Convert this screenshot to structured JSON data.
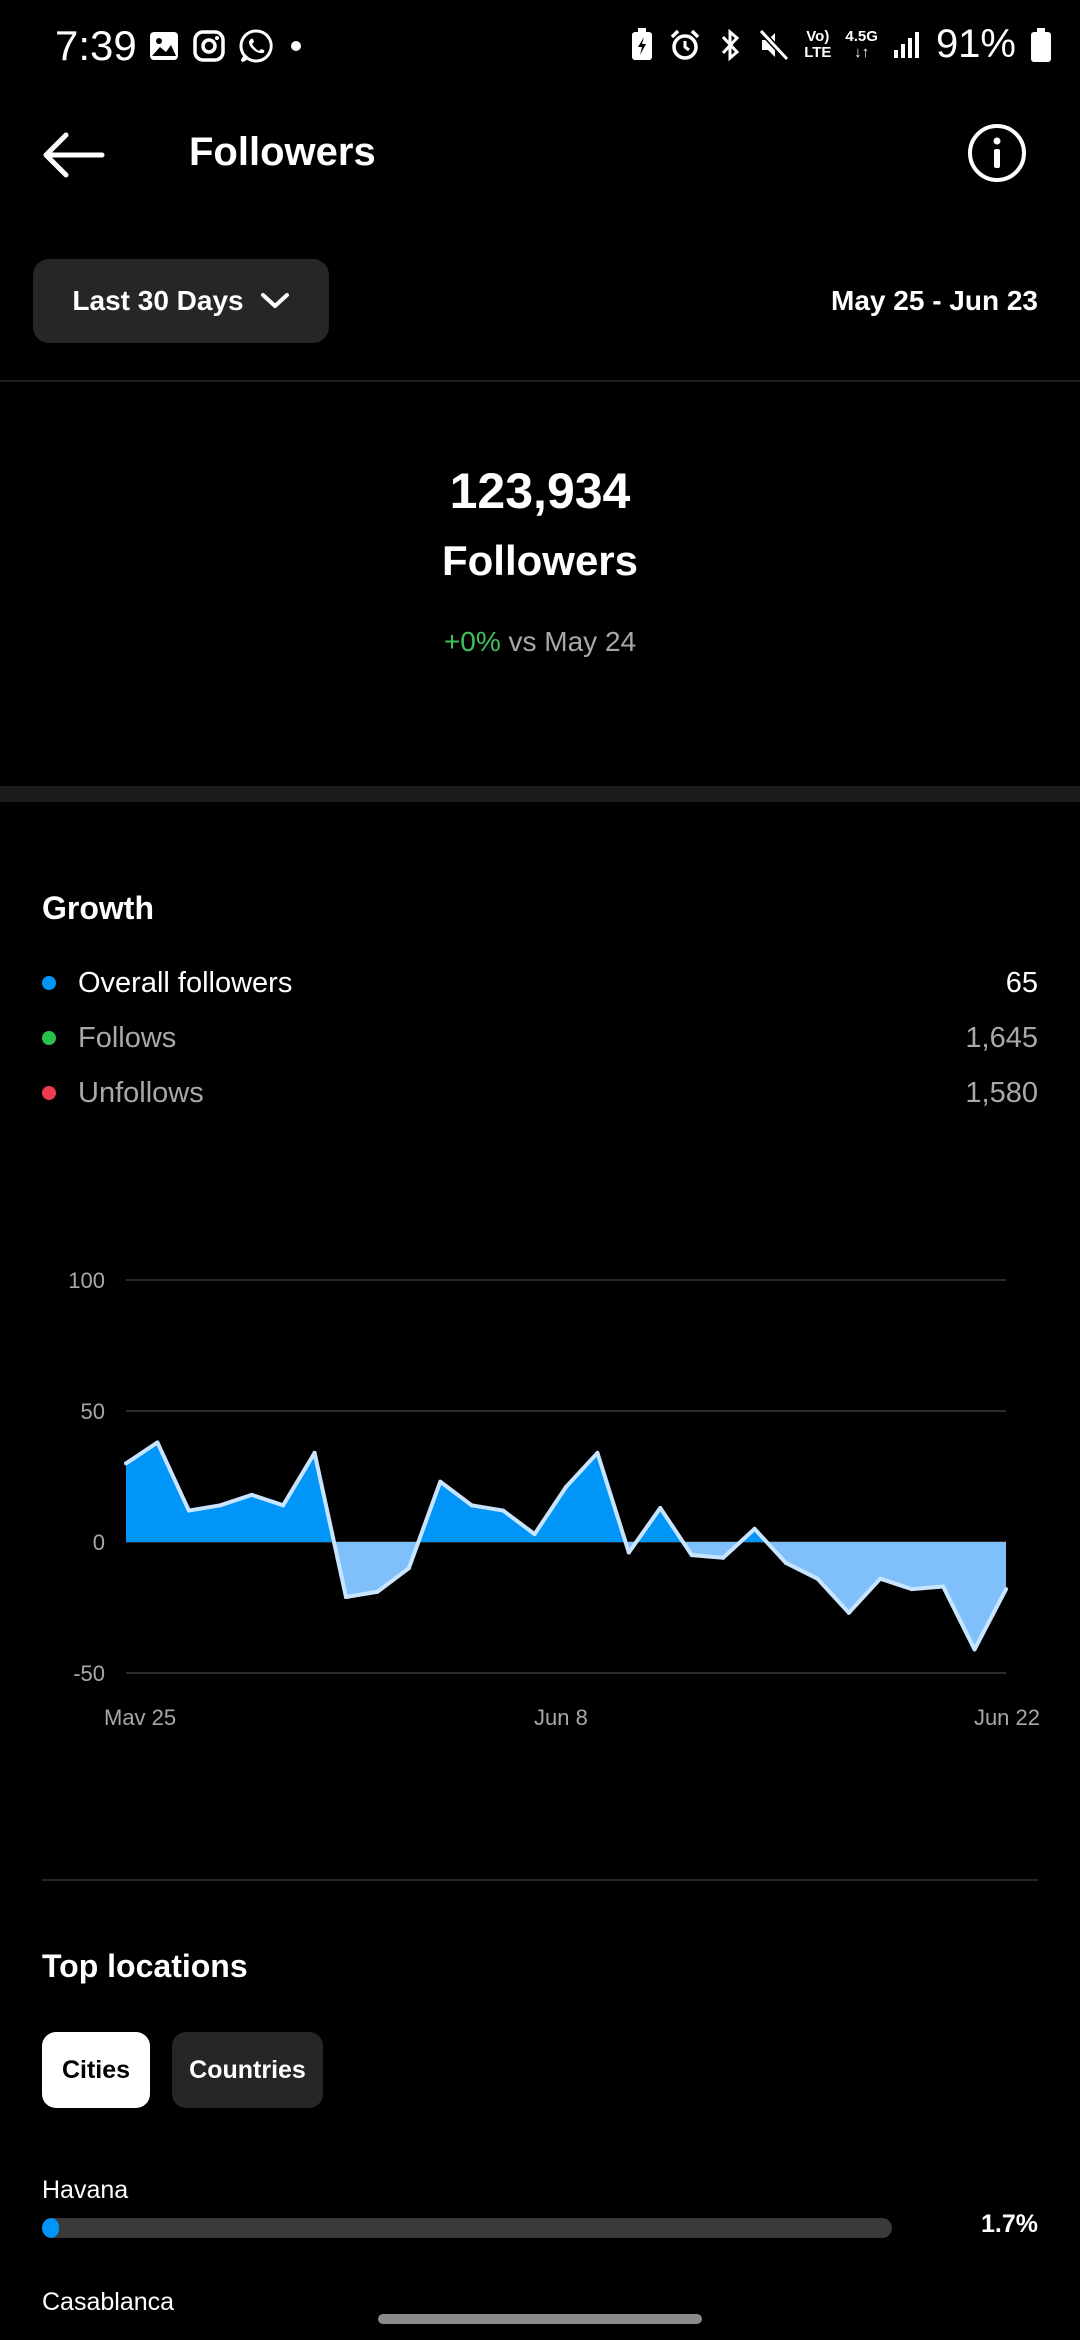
{
  "status_bar": {
    "time": "7:39",
    "battery": "91%",
    "net_top": "Vo)",
    "net_bottom": "LTE",
    "gen": "4.5G"
  },
  "header": {
    "title": "Followers"
  },
  "range": {
    "label": "Last 30 Days",
    "dates": "May 25 - Jun 23"
  },
  "summary": {
    "total": "123,934",
    "label": "Followers",
    "change_pct": "+0%",
    "change_text": "vs May 24"
  },
  "growth": {
    "title": "Growth",
    "legend": [
      {
        "label": "Overall followers",
        "value": "65",
        "color": "#0095f6"
      },
      {
        "label": "Follows",
        "value": "1,645",
        "color": "#2bc14d"
      },
      {
        "label": "Unfollows",
        "value": "1,580",
        "color": "#ed3a4f"
      }
    ]
  },
  "chart_data": {
    "type": "area",
    "y_ticks": [
      "100",
      "50",
      "0",
      "-50"
    ],
    "ylim": [
      -50,
      100
    ],
    "x_tick_labels": [
      "Mav 25",
      "Jun 8",
      "Jun 22"
    ],
    "x_tick_days": [
      0,
      14,
      28
    ],
    "positive_color": "#0095f6",
    "negative_color": "#7fc0fb",
    "line_color": "#c8e4ff",
    "series": [
      {
        "x": [
          0,
          1,
          2,
          3,
          4,
          5,
          6,
          7,
          8,
          9,
          10,
          11,
          12,
          13,
          14,
          15,
          16,
          17,
          18,
          19,
          20,
          21,
          22,
          23,
          24,
          25,
          26,
          27,
          28
        ],
        "values": [
          30,
          38,
          12,
          14,
          18,
          14,
          34,
          -21,
          -19,
          -10,
          23,
          14,
          12,
          3,
          21,
          34,
          -4,
          13,
          -5,
          -6,
          5,
          -8,
          -14,
          -27,
          -14,
          -18,
          -17,
          -41,
          -18
        ]
      }
    ]
  },
  "locations": {
    "title": "Top locations",
    "tabs": [
      "Cities",
      "Countries"
    ],
    "items": [
      {
        "name": "Havana",
        "pct": "1.7%",
        "fraction": 0.017
      },
      {
        "name": "Casablanca"
      }
    ]
  }
}
